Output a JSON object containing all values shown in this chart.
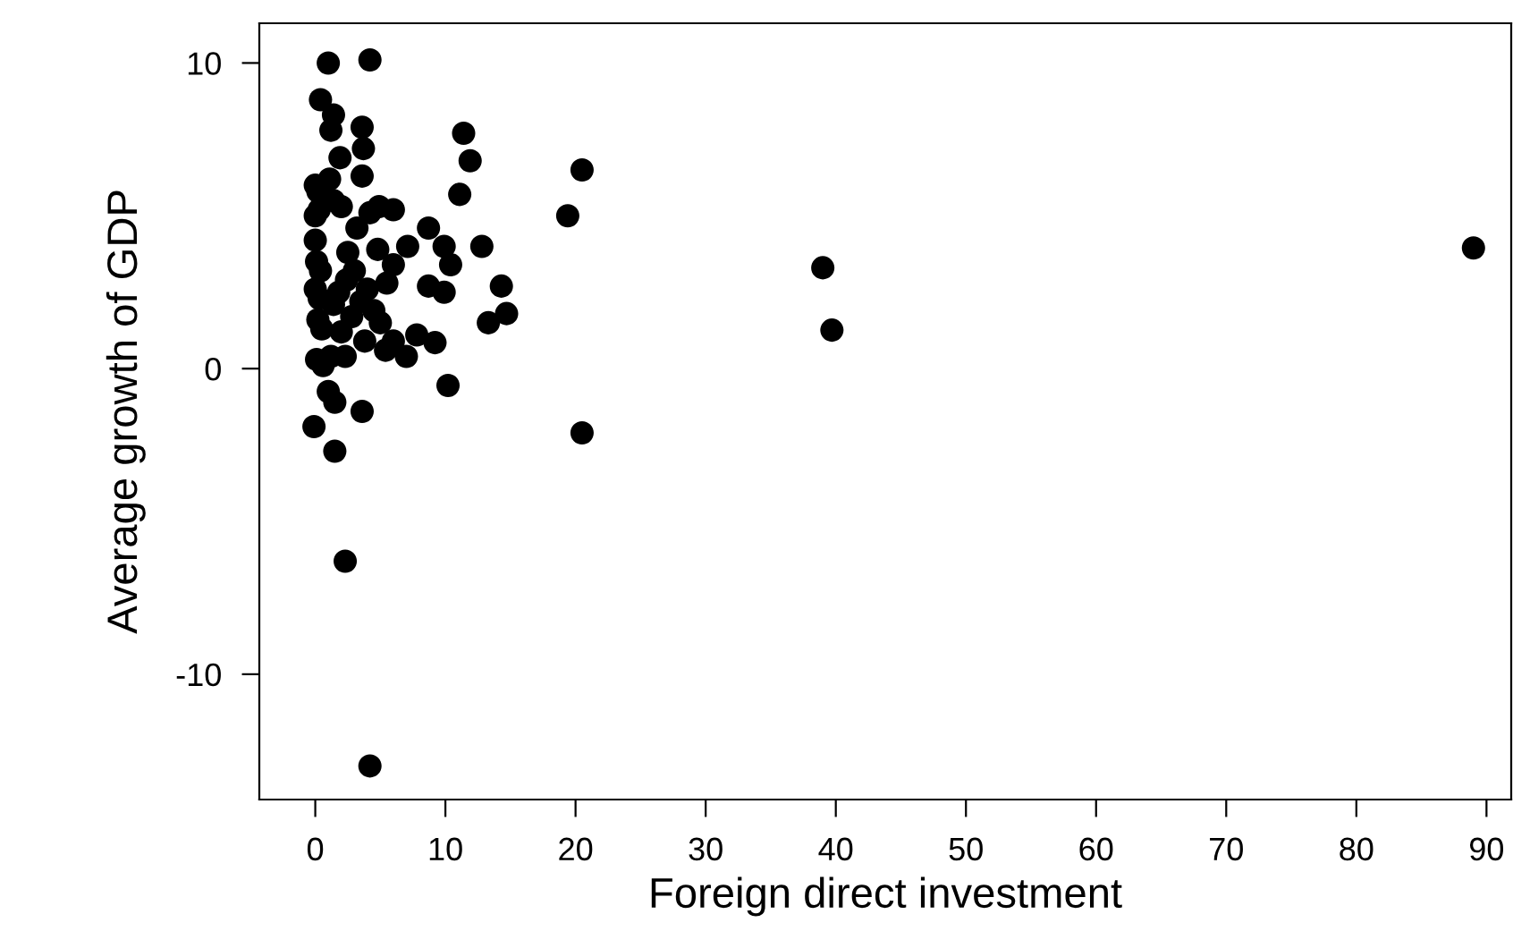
{
  "chart_data": {
    "type": "scatter",
    "xlabel": "Foreign direct investment",
    "ylabel": "Average growth of GDP",
    "xlim": [
      -4.3,
      91.9
    ],
    "ylim": [
      -14.1,
      11.3
    ],
    "xticks": [
      0,
      10,
      20,
      30,
      40,
      50,
      60,
      70,
      80,
      90
    ],
    "yticks": [
      -10,
      0,
      10
    ],
    "marker": "circle",
    "grid": false,
    "series": [
      {
        "color": "#000000",
        "x": [
          89.0,
          39.0,
          39.7,
          20.5,
          20.5,
          1.0,
          4.2,
          0.4,
          1.4,
          1.2,
          3.6,
          3.7,
          1.9,
          3.6,
          11.4,
          11.9,
          11.1,
          19.4,
          6.0,
          4.9,
          8.7,
          12.8,
          7.1,
          9.9,
          10.4,
          6.0,
          8.7,
          9.9,
          14.3,
          14.7,
          13.3,
          6.0,
          7.8,
          9.2,
          7.0,
          5.4,
          2.3,
          10.2,
          3.6,
          -0.1,
          1.5,
          2.3,
          4.2,
          1.5,
          1.0,
          0.0,
          0.2,
          1.1,
          1.4,
          0.0,
          0.3,
          2.0,
          0.0,
          0.1,
          0.4,
          2.5,
          0.0,
          0.3,
          1.4,
          1.8,
          2.4,
          3.0,
          0.2,
          0.5,
          2.0,
          2.8,
          3.5,
          4.0,
          4.5,
          5.0,
          3.2,
          4.2,
          4.8,
          5.5,
          3.8,
          0.1,
          0.6,
          1.2
        ],
        "values": [
          3.95,
          3.3,
          1.26,
          6.5,
          -2.1,
          10.0,
          10.1,
          8.8,
          8.3,
          7.8,
          7.9,
          7.2,
          6.9,
          6.3,
          7.7,
          6.8,
          5.7,
          5.0,
          5.2,
          5.3,
          4.6,
          4.0,
          4.0,
          4.0,
          3.4,
          3.4,
          2.7,
          2.5,
          2.7,
          1.8,
          1.5,
          0.9,
          1.1,
          0.85,
          0.4,
          0.6,
          0.4,
          -0.55,
          -1.4,
          -1.9,
          -2.7,
          -6.3,
          -13.0,
          -1.1,
          -0.75,
          6.0,
          5.8,
          6.2,
          5.5,
          5.0,
          5.2,
          5.3,
          4.2,
          3.5,
          3.2,
          3.8,
          2.6,
          2.3,
          2.1,
          2.5,
          2.9,
          3.2,
          1.6,
          1.3,
          1.2,
          1.7,
          2.2,
          2.6,
          1.9,
          1.5,
          4.6,
          5.1,
          3.9,
          2.8,
          0.9,
          0.3,
          0.1,
          0.4
        ]
      }
    ]
  }
}
